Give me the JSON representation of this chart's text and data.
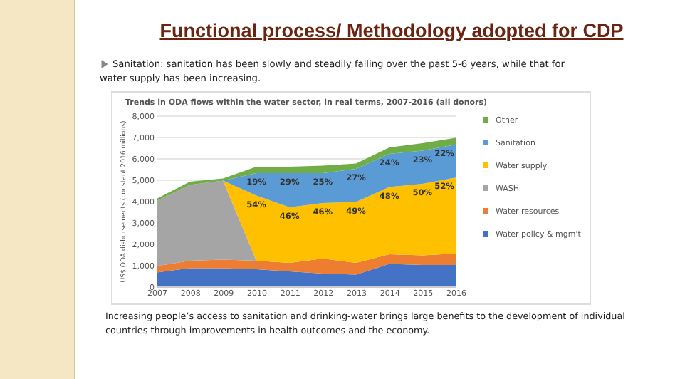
{
  "chart_data": {
    "type": "area",
    "stacked": true,
    "title": "Functional process/ Methodology adopted for CDP",
    "subtitle": "Trends in ODA flows within the water sector, in real terms, 2007-2016 (all donors)",
    "annotations": [
      "Sanitation: sanitation has been slowly and steadily falling over the past 5-6 years, while that for water supply has been increasing.",
      "Increasing people’s access to sanitation and drinking-water brings large benefits to the development of individual countries through improvements in health outcomes and the economy.",
      {
        "text": "54%",
        "x": "2010",
        "y": 4250
      },
      {
        "text": "46%",
        "x": "2011",
        "y": 3700
      },
      {
        "text": "46%",
        "x": "2012",
        "y": 3900
      },
      {
        "text": "49%",
        "x": "2013",
        "y": 3950
      },
      {
        "text": "48%",
        "x": "2014",
        "y": 4650
      },
      {
        "text": "50%",
        "x": "2015",
        "y": 4800
      },
      {
        "text": "52%",
        "x": "2016",
        "y": 5090
      },
      {
        "text": "19%",
        "x": "2010",
        "y": 5300
      },
      {
        "text": "29%",
        "x": "2011",
        "y": 5300
      },
      {
        "text": "25%",
        "x": "2012",
        "y": 5300
      },
      {
        "text": "27%",
        "x": "2013",
        "y": 5500
      },
      {
        "text": "24%",
        "x": "2014",
        "y": 6200
      },
      {
        "text": "23%",
        "x": "2015",
        "y": 6350
      },
      {
        "text": "22%",
        "x": "2016",
        "y": 6630
      }
    ],
    "ylabel": "US$ ODA disbursements (constant 2016 millions)",
    "categories": [
      "2007",
      "2008",
      "2009",
      "2010",
      "2011",
      "2012",
      "2013",
      "2014",
      "2015",
      "2016"
    ],
    "ylim": [
      0,
      8000
    ],
    "yticks": [
      {
        "value": 0,
        "label": "0"
      },
      {
        "value": 1000,
        "label": "1,000"
      },
      {
        "value": 2000,
        "label": "2,000"
      },
      {
        "value": 3000,
        "label": "3,000"
      },
      {
        "value": 4000,
        "label": "4,000"
      },
      {
        "value": 5000,
        "label": "5,000"
      },
      {
        "value": 6000,
        "label": "6,000"
      },
      {
        "value": 7000,
        "label": "7,000"
      },
      {
        "value": 8000,
        "label": "8,000"
      }
    ],
    "grid": "y",
    "legend": "right",
    "series": [
      {
        "name": "Water policy & mgm't",
        "color": "#4472c4",
        "values": [
          650,
          850,
          850,
          800,
          700,
          600,
          550,
          1050,
          1000,
          1000
        ]
      },
      {
        "name": "Water resources",
        "color": "#ed7d31",
        "values": [
          300,
          350,
          400,
          400,
          400,
          700,
          550,
          450,
          450,
          530
        ]
      },
      {
        "name": "WASH",
        "color": "#a5a5a5",
        "values": [
          3050,
          3550,
          3700,
          0,
          0,
          0,
          0,
          0,
          0,
          0
        ]
      },
      {
        "name": "Water supply",
        "color": "#ffc000",
        "values": [
          0,
          0,
          0,
          3050,
          2600,
          2600,
          2850,
          3150,
          3350,
          3560
        ]
      },
      {
        "name": "Sanitation",
        "color": "#5b9bd5",
        "values": [
          0,
          0,
          0,
          1050,
          1600,
          1400,
          1550,
          1550,
          1550,
          1540
        ]
      },
      {
        "name": "Other",
        "color": "#70ad47",
        "values": [
          100,
          150,
          100,
          300,
          300,
          350,
          250,
          300,
          350,
          320
        ]
      }
    ]
  }
}
